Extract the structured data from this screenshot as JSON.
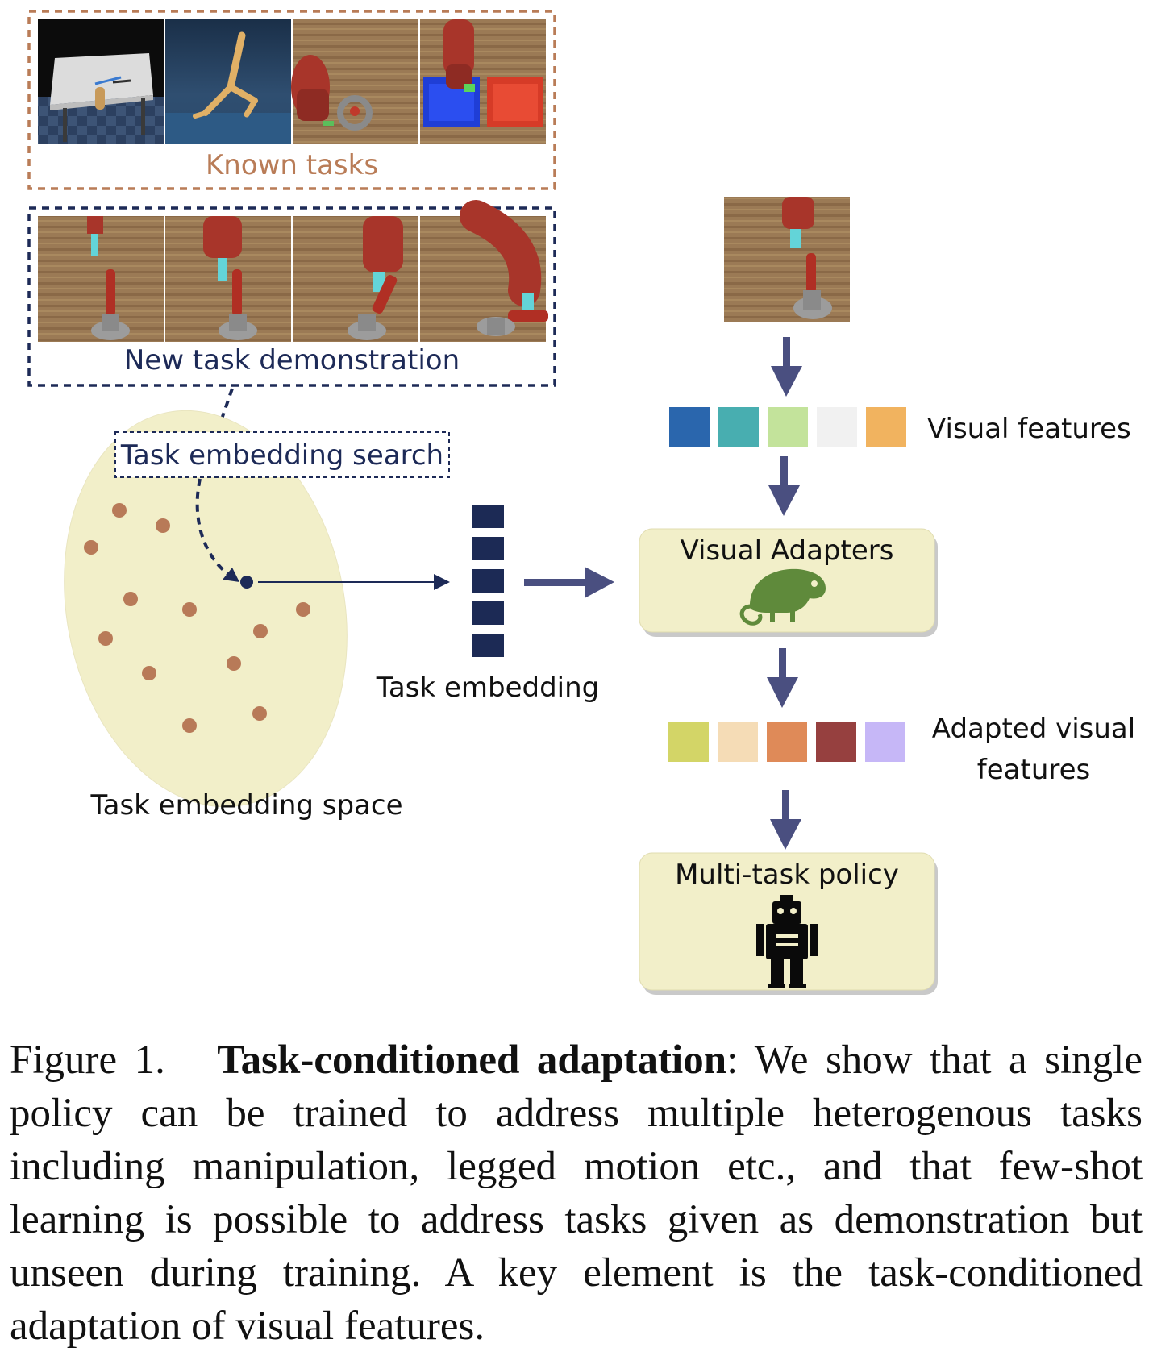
{
  "labels": {
    "known_tasks": "Known tasks",
    "new_task_demo": "New task demonstration",
    "embedding_search": "Task embedding search",
    "embedding_space": "Task embedding space",
    "task_embedding": "Task embedding",
    "visual_features": "Visual features",
    "visual_adapters": "Visual Adapters",
    "adapted_visual_line1": "Adapted visual",
    "adapted_visual_line2": "features",
    "multi_task_policy": "Multi-task policy"
  },
  "icons": {
    "adapter_icon": "chameleon-icon",
    "policy_icon": "robot-icon"
  },
  "colors": {
    "known_border": "#b97c57",
    "known_text": "#b97c57",
    "new_border": "#1d2a57",
    "new_text": "#1d2a57",
    "ellipse_fill": "#f2efc9",
    "dot": "#b87a58",
    "arrow": "#4a4f80",
    "box_fill": "#f2efc9",
    "embed_block": "#1c2a55",
    "chameleon": "#5f8a3b"
  },
  "visual_feature_colors": [
    "#2a66ad",
    "#48aeb0",
    "#c3e39b",
    "#f1f1f1",
    "#f1b35f"
  ],
  "adapted_feature_colors": [
    "#d3d567",
    "#f5dcb6",
    "#df8a58",
    "#96403f",
    "#c6b7f7"
  ],
  "caption": {
    "prefix": "Figure 1.",
    "bold": "Task-conditioned adaptation",
    "text": ": We show that a single policy can be trained to address multiple heterogenous tasks including manipulation, legged motion etc., and that few-shot learning is possible to address tasks given as demonstration but unseen during training. A key element is the task-conditioned adaptation of visual features."
  }
}
